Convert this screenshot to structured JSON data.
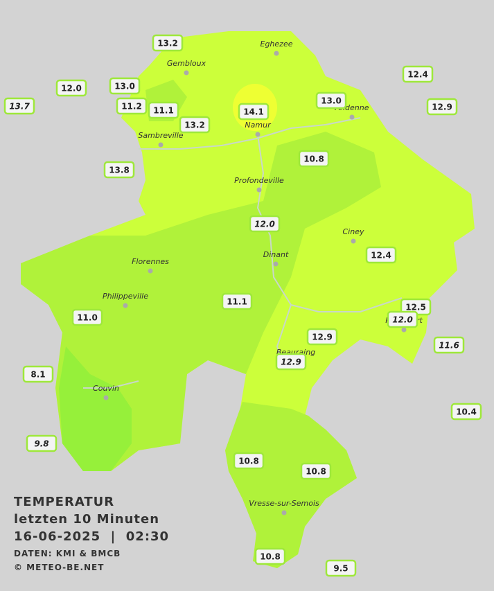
{
  "legend": {
    "title_lines": [
      "TEMPERATUR",
      "letzten 10 Minuten",
      "16-06-2025  |  02:30"
    ],
    "credits": [
      "DATEN: KMI & BMCB",
      "© METEO-BE.NET"
    ]
  },
  "cities": [
    "Eghezee",
    "Gembloux",
    "Andenne",
    "Namur",
    "Sambreville",
    "Profondeville",
    "Ciney",
    "Dinant",
    "Florennes",
    "Philippeville",
    "Rochefort",
    "Beauraing",
    "Couvin",
    "Vresse-sur-Semois"
  ],
  "stations": [
    {
      "label": "13.2"
    },
    {
      "label": "12.0"
    },
    {
      "label": "13.0"
    },
    {
      "label": "13.7",
      "italic": true
    },
    {
      "label": "11.2"
    },
    {
      "label": "11.1"
    },
    {
      "label": "13.2"
    },
    {
      "label": "14.1"
    },
    {
      "label": "13.0"
    },
    {
      "label": "12.4"
    },
    {
      "label": "12.9"
    },
    {
      "label": "13.8"
    },
    {
      "label": "10.8"
    },
    {
      "label": "12.0",
      "italic": true
    },
    {
      "label": "12.4"
    },
    {
      "label": "11.1"
    },
    {
      "label": "11.0"
    },
    {
      "label": "12.5"
    },
    {
      "label": "12.0",
      "italic": true
    },
    {
      "label": "11.6",
      "italic": true
    },
    {
      "label": "12.9"
    },
    {
      "label": "12.9",
      "italic": true
    },
    {
      "label": "8.1"
    },
    {
      "label": "10.4"
    },
    {
      "label": "9.8",
      "italic": true
    },
    {
      "label": "10.8"
    },
    {
      "label": "10.8"
    },
    {
      "label": "10.8"
    },
    {
      "label": "9.5"
    }
  ]
}
